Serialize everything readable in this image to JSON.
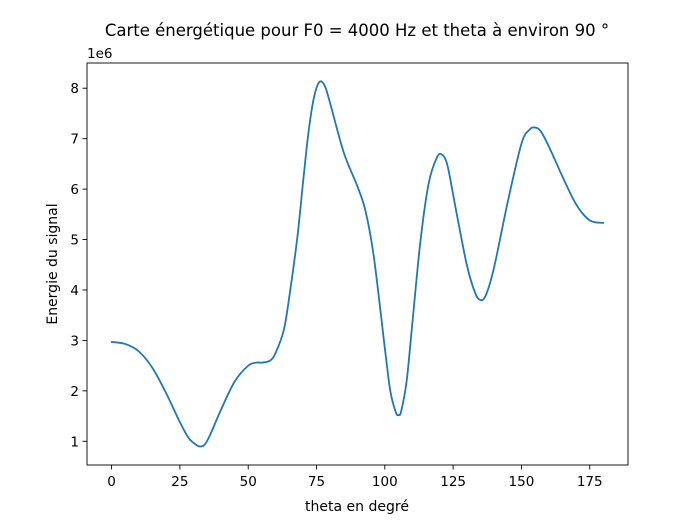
{
  "chart_data": {
    "type": "line",
    "title": "Carte énergétique pour F0 = 4000 Hz et theta à environ 90 °",
    "xlabel": "theta en degré",
    "ylabel": "Energie du signal",
    "y_offset_label": "1e6",
    "xlim": [
      -9,
      189
    ],
    "ylim": [
      0.53,
      8.5
    ],
    "x_ticks": [
      0,
      25,
      50,
      75,
      100,
      125,
      150,
      175
    ],
    "x_tick_labels": [
      "0",
      "25",
      "50",
      "75",
      "100",
      "125",
      "150",
      "175"
    ],
    "y_ticks": [
      1,
      2,
      3,
      4,
      5,
      6,
      7,
      8
    ],
    "y_tick_labels": [
      "1",
      "2",
      "3",
      "4",
      "5",
      "6",
      "7",
      "8"
    ],
    "grid": false,
    "series": [
      {
        "color": "#1f77b4",
        "x": [
          0,
          5,
          10,
          15,
          20,
          25,
          28,
          30,
          32,
          34,
          36,
          40,
          45,
          50,
          53,
          55,
          58,
          60,
          63,
          65,
          68,
          70,
          72,
          74,
          76,
          78,
          80,
          85,
          90,
          93,
          96,
          100,
          102,
          104,
          105,
          106,
          108,
          110,
          113,
          116,
          119,
          121,
          123,
          126,
          130,
          133,
          135,
          137,
          140,
          145,
          150,
          153,
          155,
          157,
          160,
          165,
          170,
          175,
          180
        ],
        "y": [
          2.97,
          2.93,
          2.78,
          2.45,
          1.95,
          1.38,
          1.08,
          0.97,
          0.9,
          0.93,
          1.12,
          1.62,
          2.18,
          2.5,
          2.56,
          2.56,
          2.6,
          2.75,
          3.2,
          3.85,
          5.05,
          6.1,
          7.1,
          7.8,
          8.12,
          8.05,
          7.7,
          6.72,
          6.05,
          5.55,
          4.65,
          2.85,
          2.0,
          1.58,
          1.52,
          1.6,
          2.2,
          3.3,
          4.95,
          6.1,
          6.62,
          6.68,
          6.45,
          5.6,
          4.5,
          3.95,
          3.8,
          3.9,
          4.45,
          5.75,
          6.9,
          7.18,
          7.22,
          7.15,
          6.85,
          6.25,
          5.7,
          5.38,
          5.33
        ]
      }
    ]
  }
}
